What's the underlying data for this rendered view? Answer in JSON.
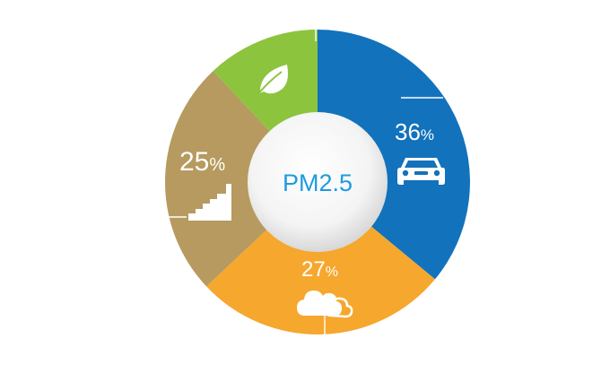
{
  "chart_data": {
    "type": "pie",
    "style": "donut",
    "center_label": "PM2.5",
    "slices": [
      {
        "value": 36,
        "label": "36",
        "unit": "%",
        "color": "#1272bc",
        "icon": "car-icon"
      },
      {
        "value": 27,
        "label": "27",
        "unit": "%",
        "color": "#f6a72e",
        "icon": "cloud-icon"
      },
      {
        "value": 25,
        "label": "25",
        "unit": "%",
        "color": "#b69a5f",
        "icon": "factory-icon"
      },
      {
        "value": 12,
        "label": "",
        "unit": "",
        "color": "#8cc43e",
        "icon": "leaf-icon"
      }
    ],
    "center_fill": "#f2f2f2"
  }
}
